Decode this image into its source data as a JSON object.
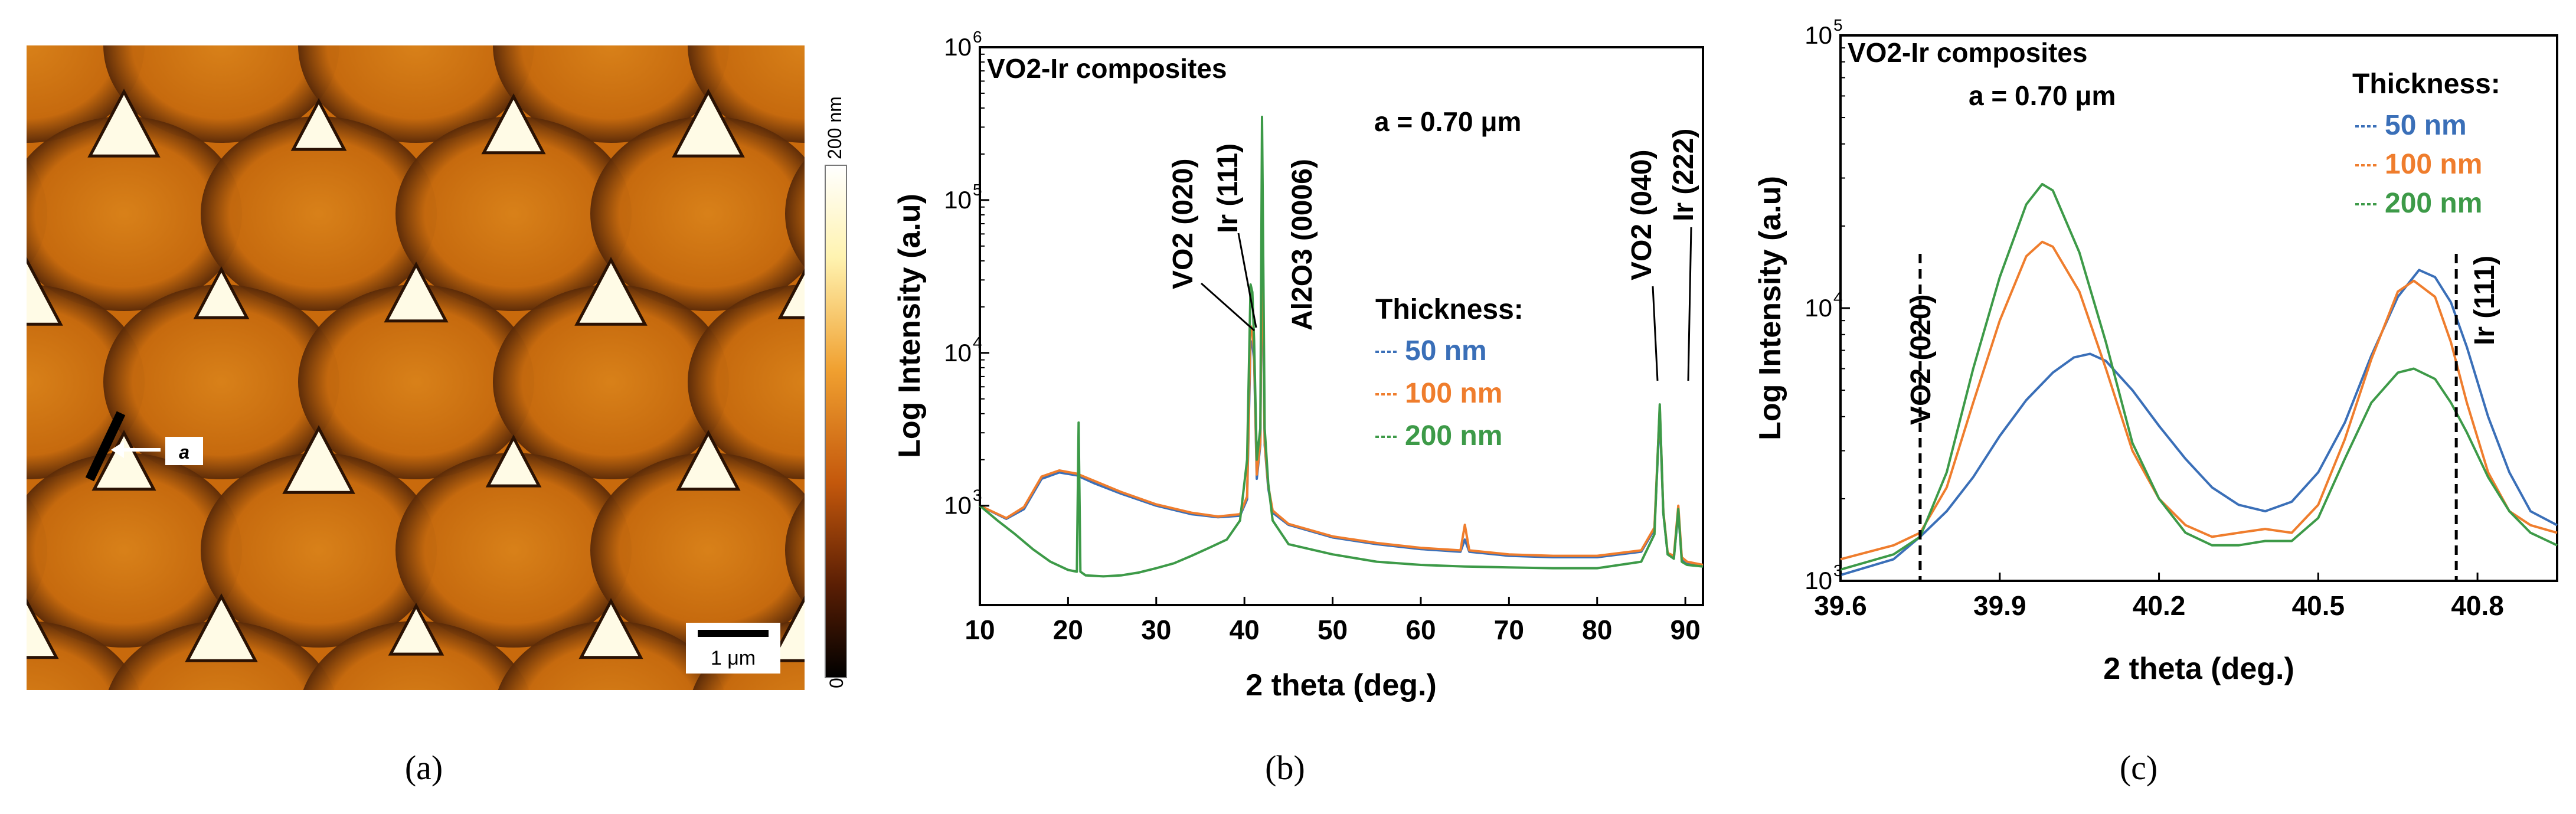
{
  "captions": {
    "a": "(a)",
    "b": "(b)",
    "c": "(c)"
  },
  "afm": {
    "colorbar_top": "200 nm",
    "colorbar_bottom": "0",
    "scalebar_label": "1 μm",
    "marker_label": "a",
    "colors": {
      "high": "#fffbe6",
      "mid": "#d67a10",
      "low": "#000000",
      "bg": "#c96a0c"
    }
  },
  "colors": {
    "50nm": "#3a6fb8",
    "100nm": "#ef7d2d",
    "200nm": "#3d9a48",
    "axis": "#000000"
  },
  "chart_data": [
    {
      "id": "b",
      "type": "line",
      "title": "VO2-Ir composites",
      "annotation": "a = 0.70 μm",
      "xlabel": "2 theta (deg.)",
      "ylabel": "Log Intensity (a.u)",
      "xlim": [
        10,
        92
      ],
      "ylim_log10": [
        2.35,
        6
      ],
      "xticks": [
        10,
        20,
        30,
        40,
        50,
        60,
        70,
        80,
        90
      ],
      "yticks": [
        {
          "exp": 3,
          "label": "10",
          "sup": "3"
        },
        {
          "exp": 4,
          "label": "10",
          "sup": "4"
        },
        {
          "exp": 5,
          "label": "10",
          "sup": "5"
        },
        {
          "exp": 6,
          "label": "10",
          "sup": "6"
        }
      ],
      "legend_title": "Thickness:",
      "legend": [
        "50 nm",
        "100 nm",
        "200 nm"
      ],
      "peak_labels": [
        "VO2 (020)",
        "Ir (111)",
        "Al2O3 (0006)",
        "VO2 (040)",
        "Ir (222)"
      ],
      "series": [
        {
          "name": "50 nm",
          "x": [
            10,
            13,
            15,
            17,
            19,
            21,
            23,
            26,
            30,
            34,
            37,
            39.5,
            40.3,
            40.7,
            40.9,
            41.1,
            41.4,
            41.8,
            42.0,
            42.3,
            42.7,
            43.2,
            45,
            50,
            55,
            60,
            64.5,
            65,
            65.5,
            70,
            75,
            80,
            85,
            86.5,
            87.1,
            87.5,
            88,
            88.7,
            89.2,
            89.6,
            90.2,
            92
          ],
          "y": [
            1000,
            820,
            950,
            1500,
            1650,
            1580,
            1400,
            1200,
            1000,
            880,
            840,
            860,
            1100,
            12000,
            11500,
            9000,
            1500,
            2500,
            60000,
            2500,
            1300,
            900,
            750,
            620,
            560,
            520,
            500,
            600,
            500,
            470,
            460,
            460,
            500,
            700,
            4000,
            900,
            480,
            460,
            900,
            450,
            420,
            400
          ]
        },
        {
          "name": "100 nm",
          "x": [
            10,
            13,
            15,
            17,
            19,
            21,
            23,
            26,
            30,
            34,
            37,
            39.5,
            40.3,
            40.7,
            40.9,
            41.1,
            41.4,
            41.8,
            42.0,
            42.3,
            42.7,
            43.2,
            45,
            50,
            55,
            60,
            64.5,
            65,
            65.5,
            70,
            75,
            80,
            85,
            86.5,
            87.1,
            87.5,
            88,
            88.7,
            89.2,
            89.6,
            90.2,
            92
          ],
          "y": [
            1000,
            830,
            980,
            1550,
            1700,
            1620,
            1450,
            1230,
            1020,
            900,
            850,
            880,
            1150,
            15000,
            14000,
            10000,
            1600,
            2600,
            80000,
            2600,
            1350,
            930,
            760,
            630,
            570,
            530,
            510,
            750,
            510,
            480,
            470,
            470,
            510,
            720,
            4400,
            920,
            490,
            470,
            1000,
            460,
            430,
            410
          ]
        },
        {
          "name": "200 nm",
          "x": [
            10,
            12,
            14,
            16,
            18,
            20,
            21,
            21.2,
            21.4,
            22,
            24,
            26,
            28,
            30,
            32,
            34,
            36,
            38,
            39.5,
            40.3,
            40.7,
            40.9,
            41.1,
            41.4,
            41.8,
            42.0,
            42.3,
            42.7,
            43.2,
            45,
            50,
            55,
            60,
            65,
            70,
            75,
            80,
            85,
            86.5,
            87.1,
            87.5,
            88,
            88.7,
            89.2,
            89.6,
            90.2,
            92
          ],
          "y": [
            1000,
            800,
            650,
            520,
            430,
            380,
            370,
            3500,
            370,
            350,
            345,
            350,
            365,
            390,
            420,
            470,
            530,
            600,
            800,
            2000,
            28000,
            25000,
            12000,
            2000,
            3200,
            350000,
            3200,
            1400,
            800,
            560,
            480,
            430,
            410,
            400,
            395,
            390,
            390,
            430,
            650,
            4600,
            900,
            480,
            450,
            950,
            430,
            410,
            400
          ]
        }
      ]
    },
    {
      "id": "c",
      "type": "line",
      "title": "VO2-Ir composites",
      "annotation": "a = 0.70 μm",
      "xlabel": "2 theta (deg.)",
      "ylabel": "Log Intensity (a.u)",
      "xlim": [
        39.6,
        40.95
      ],
      "ylim_log10": [
        3,
        5
      ],
      "xticks": [
        39.6,
        39.9,
        40.2,
        40.5,
        40.8
      ],
      "xtick_labels": [
        "39.6",
        "39.9",
        "40.2",
        "40.5",
        "40.8"
      ],
      "yticks": [
        {
          "exp": 3,
          "label": "10",
          "sup": "3"
        },
        {
          "exp": 4,
          "label": "10",
          "sup": "4"
        },
        {
          "exp": 5,
          "label": "10",
          "sup": "5"
        }
      ],
      "legend_title": "Thickness:",
      "legend": [
        "50 nm",
        "100 nm",
        "200 nm"
      ],
      "reference_lines": [
        {
          "x": 39.75,
          "label": "VO2 (020)"
        },
        {
          "x": 40.76,
          "label": "Ir (111)"
        }
      ],
      "series": [
        {
          "name": "50 nm",
          "x": [
            39.6,
            39.7,
            39.75,
            39.8,
            39.85,
            39.9,
            39.95,
            40.0,
            40.04,
            40.07,
            40.1,
            40.15,
            40.2,
            40.25,
            40.3,
            40.35,
            40.4,
            40.45,
            40.5,
            40.55,
            40.6,
            40.65,
            40.69,
            40.72,
            40.75,
            40.78,
            40.82,
            40.86,
            40.9,
            40.95
          ],
          "y": [
            1050,
            1200,
            1450,
            1800,
            2400,
            3400,
            4600,
            5800,
            6600,
            6800,
            6400,
            5000,
            3700,
            2800,
            2200,
            1900,
            1800,
            1950,
            2500,
            3800,
            6700,
            11000,
            13800,
            13000,
            10500,
            7200,
            4000,
            2500,
            1800,
            1600
          ]
        },
        {
          "name": "100 nm",
          "x": [
            39.6,
            39.7,
            39.75,
            39.8,
            39.85,
            39.9,
            39.95,
            39.98,
            40.0,
            40.05,
            40.1,
            40.15,
            40.2,
            40.25,
            40.3,
            40.35,
            40.4,
            40.45,
            40.5,
            40.55,
            40.6,
            40.65,
            40.68,
            40.72,
            40.75,
            40.78,
            40.82,
            40.86,
            40.9,
            40.95
          ],
          "y": [
            1200,
            1350,
            1500,
            2200,
            4500,
            9000,
            15500,
            17500,
            16800,
            11500,
            6000,
            3000,
            2000,
            1600,
            1450,
            1500,
            1550,
            1500,
            1900,
            3300,
            6500,
            11500,
            12600,
            11000,
            7500,
            4500,
            2500,
            1800,
            1600,
            1500
          ]
        },
        {
          "name": "200 nm",
          "x": [
            39.6,
            39.7,
            39.75,
            39.8,
            39.85,
            39.9,
            39.95,
            39.98,
            40.0,
            40.05,
            40.1,
            40.15,
            40.2,
            40.25,
            40.3,
            40.35,
            40.4,
            40.45,
            40.5,
            40.55,
            40.6,
            40.65,
            40.68,
            40.72,
            40.75,
            40.78,
            40.82,
            40.86,
            40.9,
            40.95
          ],
          "y": [
            1100,
            1250,
            1450,
            2500,
            6000,
            13000,
            24000,
            28500,
            27000,
            16000,
            7500,
            3200,
            2000,
            1500,
            1350,
            1350,
            1400,
            1400,
            1700,
            2800,
            4500,
            5800,
            6000,
            5500,
            4500,
            3500,
            2400,
            1800,
            1500,
            1350
          ]
        }
      ]
    }
  ]
}
